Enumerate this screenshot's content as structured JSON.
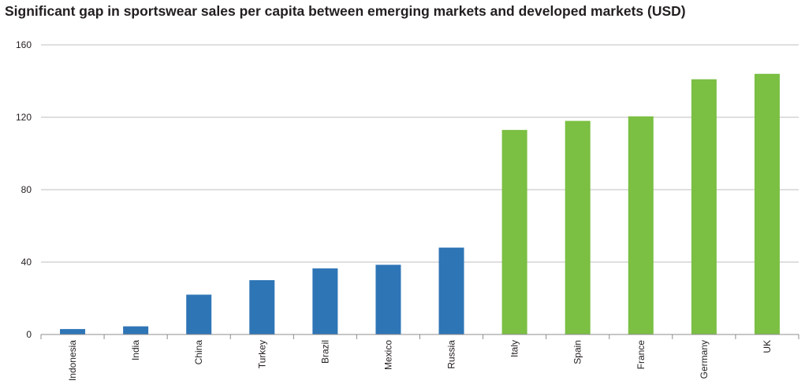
{
  "chart_data": {
    "type": "bar",
    "title": "Significant gap in sportswear sales per capita between emerging markets and developed markets (USD)",
    "xlabel": "",
    "ylabel": "",
    "ylim": [
      0,
      160
    ],
    "yticks": [
      "0",
      "40",
      "80",
      "120",
      "160"
    ],
    "grid": true,
    "categories": [
      "Indonesia",
      "India",
      "China",
      "Turkey",
      "Brazil",
      "Mexico",
      "Russia",
      "Italy",
      "Spain",
      "France",
      "Germany",
      "UK"
    ],
    "values": [
      3,
      4.5,
      22,
      30,
      36.5,
      38.5,
      48,
      113,
      118,
      120.5,
      141,
      144
    ],
    "colors": {
      "emerging": "#2e75b6",
      "developed": "#7bbf43",
      "grid": "#bfbfbf",
      "axis": "#8c8c8c"
    },
    "group": [
      "emerging",
      "emerging",
      "emerging",
      "emerging",
      "emerging",
      "emerging",
      "emerging",
      "developed",
      "developed",
      "developed",
      "developed",
      "developed"
    ]
  }
}
